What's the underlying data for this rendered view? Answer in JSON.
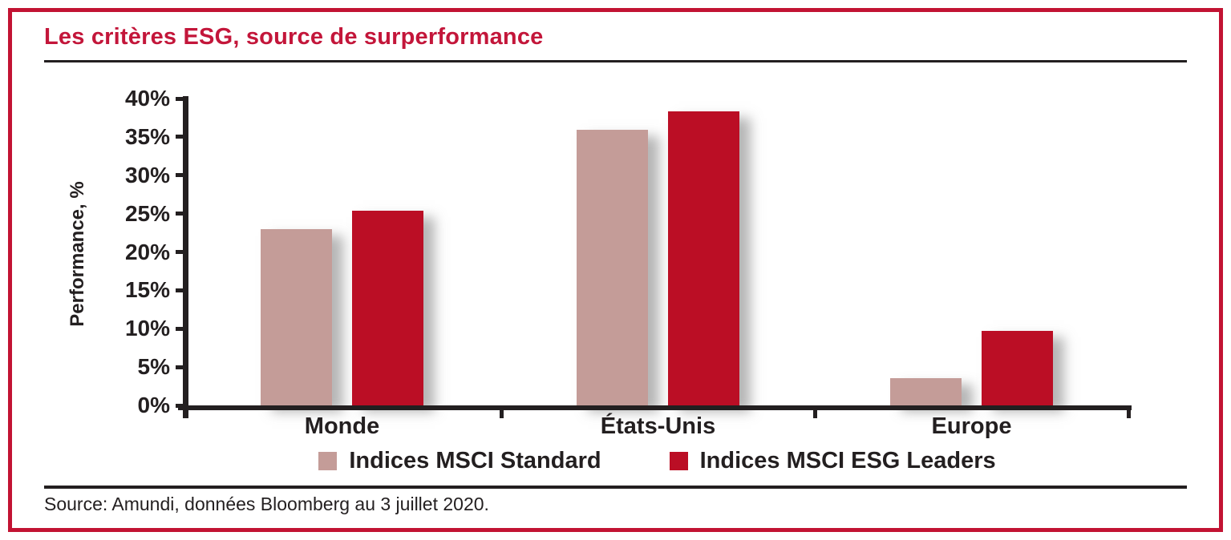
{
  "chart_data": {
    "type": "bar",
    "title": "Les critères ESG, source de surperformance",
    "ylabel": "Performance, %",
    "categories": [
      "Monde",
      "États-Unis",
      "Europe"
    ],
    "series": [
      {
        "name": "Indices MSCI Standard",
        "color": "#C49C98",
        "values": [
          23.0,
          35.9,
          3.5
        ]
      },
      {
        "name": "Indices MSCI ESG Leaders",
        "color": "#BB0E25",
        "values": [
          25.4,
          38.3,
          9.7
        ]
      }
    ],
    "ylim": [
      0,
      40
    ],
    "ytick_labels": [
      "0%",
      "5%",
      "10%",
      "15%",
      "20%",
      "25%",
      "30%",
      "35%",
      "40%"
    ],
    "grid": false,
    "legend_position": "bottom"
  },
  "footer": {
    "source_note": "Source: Amundi, données Bloomberg au 3 juillet 2020."
  },
  "colors": {
    "frame_border": "#C21333",
    "title": "#C3163A",
    "ink": "#231F20",
    "bar_shadow": "rgba(110,110,110,0.5)"
  }
}
